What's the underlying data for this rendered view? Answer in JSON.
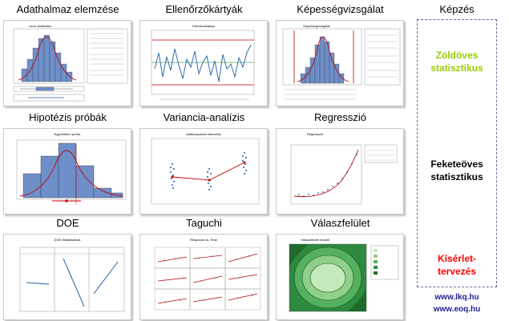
{
  "cells": [
    {
      "title": "Adathalmaz elemzése",
      "chart_title": "Leíró statisztika"
    },
    {
      "title": "Ellenőrzőkártyák",
      "chart_title": "Ellenőrzőkártya"
    },
    {
      "title": "Képességvizsgálat",
      "chart_title": "Képességvizsgálat"
    },
    {
      "title": "Hipotézis próbák",
      "chart_title": "Egymintás t-próba"
    },
    {
      "title": "Variancia-analízis",
      "chart_title": "Adatcsoportok elemzése"
    },
    {
      "title": "Regresszió",
      "chart_title": "Regresszió"
    },
    {
      "title": "DOE",
      "chart_title": "DOE főhatásábrák"
    },
    {
      "title": "Taguchi",
      "chart_title": "Response vs. Time"
    },
    {
      "title": "Válaszfelület",
      "chart_title": "Válaszfelület modell"
    }
  ],
  "right": {
    "title": "Képzés",
    "green_line1": "Zöldöves",
    "green_line2": "statisztikus",
    "black_line1": "Feketeöves",
    "black_line2": "statisztikus",
    "red_line1": "Kísérlet-",
    "red_line2": "tervezés",
    "link1": "www.lkq.hu",
    "link2": "www.eoq.hu"
  },
  "colors": {
    "bar_blue": "#6e8fc9",
    "line_red": "#c00000",
    "series_blue": "#1f5fa8",
    "green_text": "#99cc00",
    "red_text": "#ff0000",
    "link_blue": "#1f1f8f"
  }
}
